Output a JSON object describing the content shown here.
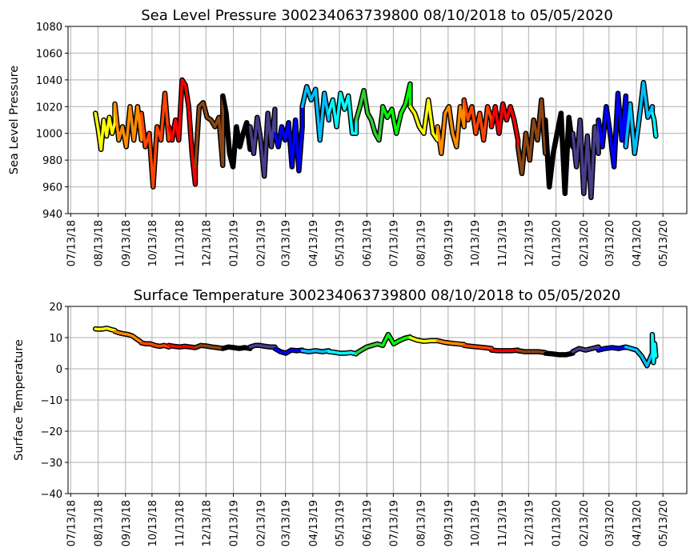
{
  "chart_data": [
    {
      "type": "line",
      "title": "Sea Level Pressure 300234063739800  08/10/2018 to 05/05/2020",
      "xlabel": "",
      "ylabel": "Sea Level Pressure",
      "ylim": [
        940,
        1080
      ],
      "yticks": [
        "940",
        "960",
        "980",
        "1000",
        "1020",
        "1040",
        "1060",
        "1080"
      ],
      "key": "pressure",
      "grid": true
    },
    {
      "type": "line",
      "title": "Surface Temperature 300234063739800  08/10/2018 to 05/05/2020",
      "xlabel": "",
      "ylabel": "Surface Temperature",
      "ylim": [
        -40,
        20
      ],
      "yticks": [
        "−40",
        "−30",
        "−20",
        "−10",
        "0",
        "10",
        "20"
      ],
      "key": "temperature",
      "grid": true
    }
  ],
  "x_axis": {
    "xlim": [
      "2018-07-10",
      "2020-06-09"
    ],
    "data_range": [
      "2018-08-10",
      "2020-05-05"
    ],
    "ticks": [
      "07/13/18",
      "08/13/18",
      "09/13/18",
      "10/13/18",
      "11/13/18",
      "12/13/18",
      "01/13/19",
      "02/13/19",
      "03/13/19",
      "04/13/19",
      "05/13/19",
      "06/13/19",
      "07/13/19",
      "08/13/19",
      "09/13/19",
      "10/13/19",
      "11/13/19",
      "12/13/19",
      "01/13/20",
      "02/13/20",
      "03/13/20",
      "04/13/20",
      "05/13/20"
    ]
  },
  "segments": [
    {
      "month": "2018-08",
      "color": "#ffff00",
      "pressure": [
        1015,
        1003,
        988,
        1010,
        998,
        1012,
        1000,
        1008
      ],
      "temperature": [
        12.8,
        12.7,
        12.8,
        13.0,
        12.6,
        12.3
      ]
    },
    {
      "month": "2018-09",
      "color": "#ff8c00",
      "pressure": [
        1022,
        995,
        1005,
        990,
        1020,
        995,
        1020,
        995
      ],
      "temperature": [
        12.0,
        11.5,
        11.2,
        11.0,
        10.5,
        9.5,
        8.5
      ]
    },
    {
      "month": "2018-10",
      "color": "#ff4500",
      "pressure": [
        1015,
        990,
        1000,
        960,
        1005,
        995,
        1030,
        995
      ],
      "temperature": [
        8.3,
        8.0,
        8.0,
        7.5,
        7.2,
        7.5,
        7.0
      ]
    },
    {
      "month": "2018-11",
      "color": "#ff0000",
      "pressure": [
        1005,
        995,
        1010,
        995,
        1040,
        1036,
        1020,
        985,
        962
      ],
      "temperature": [
        7.5,
        7.2,
        7.0,
        7.2,
        7.0,
        6.8
      ]
    },
    {
      "month": "2018-12",
      "color": "#8b4513",
      "pressure": [
        975,
        1020,
        1023,
        1012,
        1010,
        1005,
        1012,
        976
      ],
      "temperature": [
        6.8,
        7.5,
        7.3,
        7.0,
        6.8,
        6.5
      ]
    },
    {
      "month": "2019-01",
      "color": "#000000",
      "pressure": [
        1028,
        1015,
        985,
        975,
        1005,
        990,
        1000,
        1008,
        988
      ],
      "temperature": [
        6.5,
        7.0,
        6.8,
        6.5,
        6.8,
        6.5
      ]
    },
    {
      "month": "2019-02",
      "color": "#483d8b",
      "pressure": [
        1005,
        985,
        1012,
        995,
        968,
        1015,
        990,
        1018
      ],
      "temperature": [
        7.0,
        7.5,
        7.5,
        7.2,
        7.0,
        7.0
      ]
    },
    {
      "month": "2019-03",
      "color": "#0000ff",
      "pressure": [
        1000,
        990,
        1005,
        995,
        1008,
        975,
        1010,
        972,
        1005
      ],
      "temperature": [
        6.5,
        5.5,
        5.0,
        6.0,
        5.8,
        6.0
      ]
    },
    {
      "month": "2019-04",
      "color": "#00bfff",
      "pressure": [
        1020,
        1035,
        1025,
        1033,
        995,
        1030,
        1010
      ],
      "temperature": [
        5.8,
        5.5,
        5.8,
        5.5,
        5.8
      ]
    },
    {
      "month": "2019-05",
      "color": "#00ffff",
      "pressure": [
        1015,
        1025,
        1005,
        1030,
        1018,
        1028,
        1000,
        1000
      ],
      "temperature": [
        5.5,
        5.3,
        5.0,
        5.0,
        5.2,
        4.8
      ]
    },
    {
      "month": "2019-06",
      "color": "#32cd32",
      "pressure": [
        1010,
        1020,
        1032,
        1015,
        1010,
        1000,
        995,
        1018
      ],
      "temperature": [
        5.0,
        6.0,
        7.0,
        7.5,
        8.0,
        7.5
      ]
    },
    {
      "month": "2019-07",
      "color": "#00ff00",
      "pressure": [
        1020,
        1012,
        1018,
        1000,
        1015,
        1022,
        1037
      ],
      "temperature": [
        7.5,
        11.0,
        8.0,
        9.0,
        9.8,
        10.2
      ]
    },
    {
      "month": "2019-08",
      "color": "#ffff00",
      "pressure": [
        1020,
        1015,
        1005,
        1000,
        1025,
        1000,
        995
      ],
      "temperature": [
        10.0,
        9.2,
        8.8,
        9.0,
        9.0
      ]
    },
    {
      "month": "2019-09",
      "color": "#ff8c00",
      "pressure": [
        1005,
        985,
        1015,
        1020,
        1000,
        990,
        1020,
        1005
      ],
      "temperature": [
        9.0,
        8.5,
        8.2,
        8.0,
        7.8
      ]
    },
    {
      "month": "2019-10",
      "color": "#ff4500",
      "pressure": [
        1025,
        1010,
        1020,
        1000,
        1015,
        995,
        1020,
        1010
      ],
      "temperature": [
        7.5,
        7.2,
        7.0,
        6.8,
        6.5
      ]
    },
    {
      "month": "2019-11",
      "color": "#ff0000",
      "pressure": [
        1005,
        1020,
        1000,
        1022,
        1010,
        1020,
        1010,
        995
      ],
      "temperature": [
        6.0,
        5.8,
        5.8,
        5.8,
        6.0
      ]
    },
    {
      "month": "2019-12",
      "color": "#8b4513",
      "pressure": [
        990,
        970,
        1000,
        980,
        1010,
        995,
        1025,
        985
      ],
      "temperature": [
        5.8,
        5.5,
        5.5,
        5.5,
        5.2
      ]
    },
    {
      "month": "2020-01",
      "color": "#000000",
      "pressure": [
        1010,
        960,
        985,
        1000,
        1015,
        955,
        1012,
        990
      ],
      "temperature": [
        5.0,
        4.8,
        4.5,
        4.5,
        5.0
      ]
    },
    {
      "month": "2020-02",
      "color": "#483d8b",
      "pressure": [
        1000,
        975,
        1010,
        955,
        998,
        952,
        1005,
        985
      ],
      "temperature": [
        5.5,
        6.5,
        6.0,
        6.5,
        7.0
      ]
    },
    {
      "month": "2020-03",
      "color": "#0000ff",
      "pressure": [
        1010,
        990,
        1020,
        1000,
        975,
        1030,
        995,
        1028
      ],
      "temperature": [
        6.0,
        6.5,
        6.8,
        6.5,
        7.0
      ]
    },
    {
      "month": "2020-04",
      "color": "#00bfff",
      "pressure": [
        990,
        1022,
        985,
        1010,
        1038,
        1012,
        1020
      ],
      "temperature": [
        7.0,
        6.5,
        6.0,
        4.0,
        1.0,
        5.0
      ]
    },
    {
      "month": "2020-05",
      "color": "#00ffff",
      "pressure": [
        1015,
        1010,
        998
      ],
      "temperature": [
        11.0,
        2.0,
        8.0,
        4.0
      ]
    }
  ]
}
